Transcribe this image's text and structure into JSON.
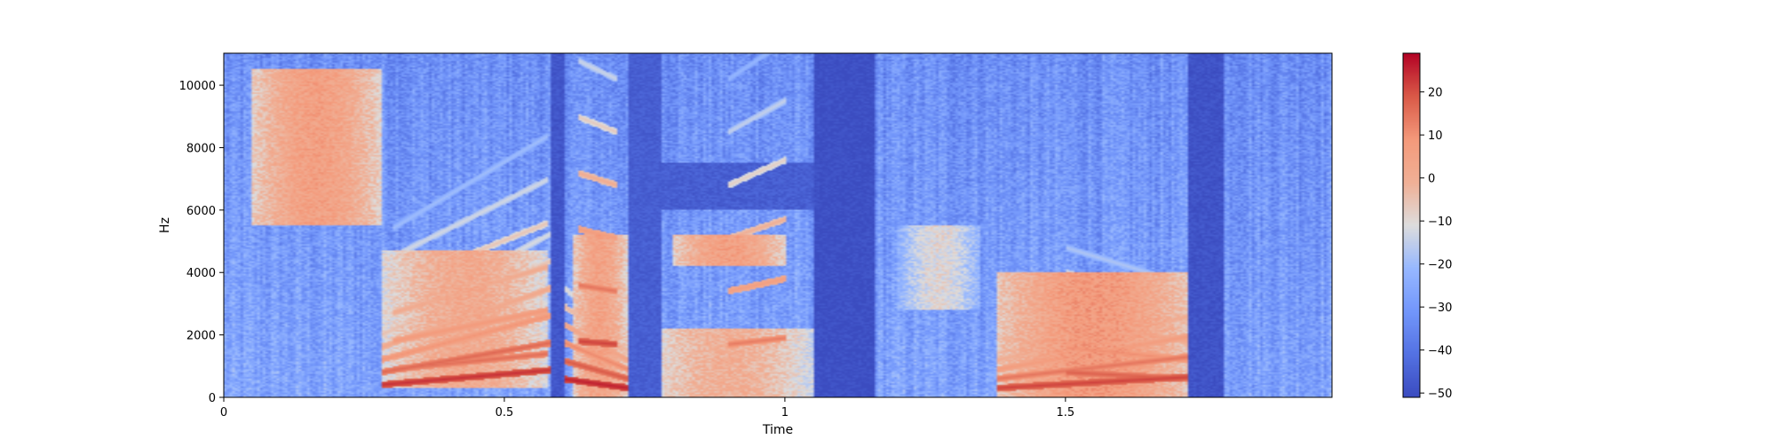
{
  "chart_data": {
    "type": "heatmap",
    "xlabel": "Time",
    "ylabel": "Hz",
    "xlim": [
      0,
      1.975
    ],
    "ylim": [
      0,
      11025
    ],
    "x_ticks": [
      {
        "value": 0,
        "label": "0"
      },
      {
        "value": 0.5,
        "label": "0.5"
      },
      {
        "value": 1,
        "label": "1"
      },
      {
        "value": 1.5,
        "label": "1.5"
      }
    ],
    "y_ticks": [
      {
        "value": 0,
        "label": "0"
      },
      {
        "value": 2000,
        "label": "2000"
      },
      {
        "value": 4000,
        "label": "4000"
      },
      {
        "value": 6000,
        "label": "6000"
      },
      {
        "value": 8000,
        "label": "8000"
      },
      {
        "value": 10000,
        "label": "10000"
      }
    ],
    "colorbar": {
      "colormap": "coolwarm",
      "min": -51,
      "max": 29,
      "ticks": [
        {
          "value": 20,
          "label": "20"
        },
        {
          "value": 10,
          "label": "10"
        },
        {
          "value": 0,
          "label": "0"
        },
        {
          "value": -10,
          "label": "−10"
        },
        {
          "value": -20,
          "label": "−20"
        },
        {
          "value": -30,
          "label": "−30"
        },
        {
          "value": -40,
          "label": "−40"
        },
        {
          "value": -50,
          "label": "−50"
        }
      ]
    },
    "silence_regions": [
      {
        "t_start": 0.585,
        "t_end": 0.605,
        "level": -48
      },
      {
        "t_start": 0.72,
        "t_end": 0.78,
        "level": -46
      },
      {
        "t_start": 1.05,
        "t_end": 1.16,
        "level": -50
      },
      {
        "t_start": 1.72,
        "t_end": 1.78,
        "level": -49
      }
    ],
    "energy_regions": [
      {
        "t_start": 0.05,
        "t_end": 0.28,
        "f_start": 5500,
        "f_end": 10500,
        "level": 6
      },
      {
        "t_start": 0.28,
        "t_end": 0.58,
        "f_start": 300,
        "f_end": 4700,
        "level": 2
      },
      {
        "t_start": 0.62,
        "t_end": 0.72,
        "f_start": 0,
        "f_end": 5200,
        "level": 5
      },
      {
        "t_start": 0.8,
        "t_end": 1.0,
        "f_start": 4200,
        "f_end": 5200,
        "level": 6
      },
      {
        "t_start": 0.75,
        "t_end": 1.05,
        "f_start": 0,
        "f_end": 2200,
        "level": 0
      },
      {
        "t_start": 1.2,
        "t_end": 1.35,
        "f_start": 2800,
        "f_end": 5500,
        "level": -10
      },
      {
        "t_start": 1.38,
        "t_end": 1.72,
        "f_start": 0,
        "f_end": 4000,
        "level": 8
      }
    ],
    "harmonic_tracks": [
      {
        "t_start": 0.28,
        "t_end": 0.6,
        "f_start": 400,
        "f_end": 900,
        "level": 24
      },
      {
        "t_start": 0.3,
        "t_end": 0.58,
        "f_start": 900,
        "f_end": 1400,
        "level": 16
      },
      {
        "t_start": 0.6,
        "t_end": 0.72,
        "f_start": 600,
        "f_end": 300,
        "level": 26
      },
      {
        "t_start": 0.63,
        "t_end": 0.7,
        "f_start": 1800,
        "f_end": 1700,
        "level": 22
      },
      {
        "t_start": 0.9,
        "t_end": 1.0,
        "f_start": 1700,
        "f_end": 1900,
        "level": 14
      },
      {
        "t_start": 1.38,
        "t_end": 1.72,
        "f_start": 300,
        "f_end": 650,
        "level": 22
      },
      {
        "t_start": 1.5,
        "t_end": 1.72,
        "f_start": 800,
        "f_end": 600,
        "level": 18
      }
    ],
    "cool_bands": [
      {
        "t_start": 0.78,
        "t_end": 1.05,
        "f_start": 6000,
        "f_end": 7500,
        "level": -46
      }
    ]
  }
}
